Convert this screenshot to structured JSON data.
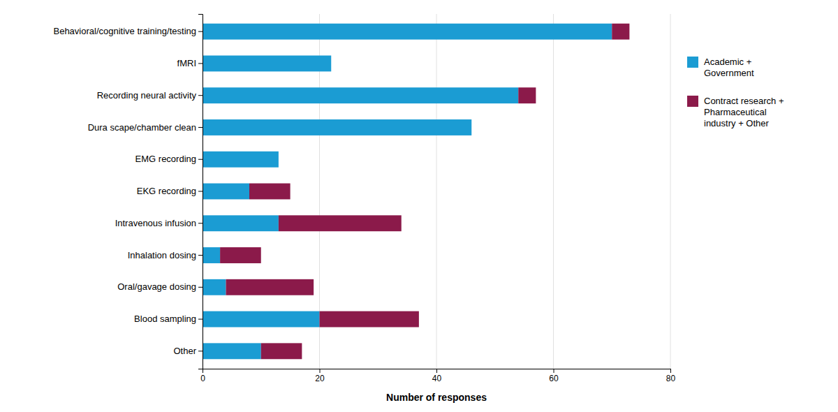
{
  "chart_data": {
    "type": "bar",
    "orientation": "horizontal",
    "stacked": true,
    "categories": [
      "Behavioral/cognitive training/testing",
      "fMRI",
      "Recording neural activity",
      "Dura scape/chamber clean",
      "EMG recording",
      "EKG recording",
      "Intravenous infusion",
      "Inhalation dosing",
      "Oral/gavage dosing",
      "Blood sampling",
      "Other"
    ],
    "series": [
      {
        "name": "Academic +\nGovernment",
        "color": "#1B9CD3",
        "values": [
          70,
          22,
          54,
          46,
          13,
          8,
          13,
          3,
          4,
          20,
          10
        ]
      },
      {
        "name": "Contract research +\nPharmaceutical\nindustry + Other",
        "color": "#8B1A4A",
        "values": [
          3,
          0,
          3,
          0,
          0,
          7,
          21,
          7,
          15,
          17,
          7
        ]
      }
    ],
    "xlabel": "Number of responses",
    "xlim": [
      0,
      80
    ],
    "xticks": [
      0,
      20,
      40,
      60,
      80
    ],
    "grid": true,
    "legend": "right"
  }
}
